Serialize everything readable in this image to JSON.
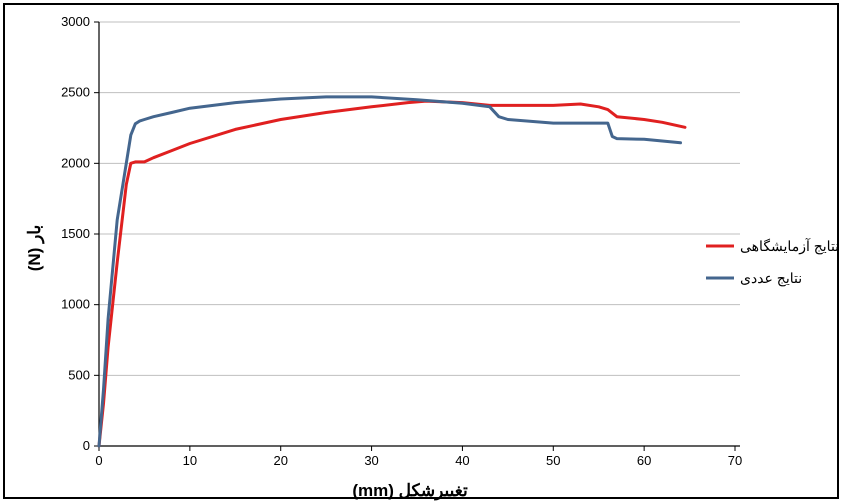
{
  "chart_data": {
    "type": "line",
    "xlabel": "تغییرشکل (mm)",
    "ylabel": "بار (N)",
    "xlim": [
      0,
      70
    ],
    "ylim": [
      0,
      3000
    ],
    "x_ticks": [
      0,
      10,
      20,
      30,
      40,
      50,
      60,
      70
    ],
    "y_ticks": [
      0,
      500,
      1000,
      1500,
      2000,
      2500,
      3000
    ],
    "grid": "horizontal",
    "legend_position": "right",
    "series": [
      {
        "name": "نتایج آزمایشگاهی",
        "color": "#e02020",
        "x": [
          0,
          0.5,
          1,
          2,
          3,
          3.5,
          4,
          5,
          6,
          8,
          10,
          15,
          20,
          25,
          30,
          34,
          36,
          38,
          40,
          43,
          45,
          50,
          53,
          55,
          56,
          57,
          60,
          62,
          64.5
        ],
        "y": [
          0,
          300,
          700,
          1300,
          1850,
          2000,
          2010,
          2010,
          2040,
          2090,
          2140,
          2240,
          2310,
          2360,
          2400,
          2430,
          2440,
          2435,
          2430,
          2410,
          2410,
          2410,
          2420,
          2400,
          2380,
          2330,
          2310,
          2290,
          2255
        ]
      },
      {
        "name": "نتایج عددی",
        "color": "#44668e",
        "x": [
          0,
          0.5,
          1,
          2,
          3,
          3.5,
          4,
          4.5,
          5,
          6,
          8,
          10,
          15,
          20,
          25,
          30,
          35,
          40,
          43,
          44,
          45,
          50,
          55,
          56,
          56.5,
          57,
          60,
          64
        ],
        "y": [
          0,
          400,
          900,
          1600,
          2000,
          2200,
          2280,
          2300,
          2310,
          2330,
          2360,
          2390,
          2430,
          2455,
          2470,
          2470,
          2450,
          2425,
          2400,
          2330,
          2310,
          2285,
          2285,
          2285,
          2190,
          2175,
          2170,
          2145
        ]
      }
    ]
  }
}
